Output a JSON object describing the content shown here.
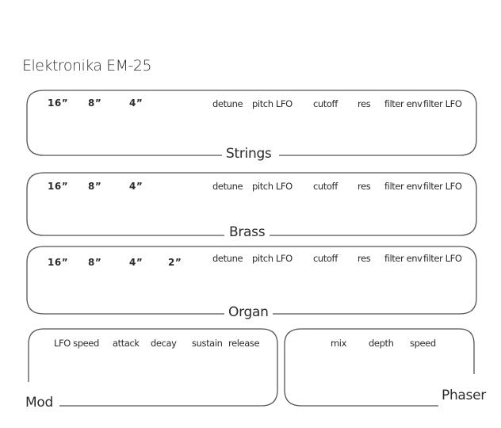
{
  "title": "Elektronika EM-25",
  "sections": {
    "strings": {
      "name": "Strings",
      "footages": [
        "16”",
        "8”",
        "4”"
      ],
      "controls": [
        "detune",
        "pitch LFO",
        "cutoff",
        "res",
        "filter env",
        "filter LFO"
      ]
    },
    "brass": {
      "name": "Brass",
      "footages": [
        "16”",
        "8”",
        "4”"
      ],
      "controls": [
        "detune",
        "pitch LFO",
        "cutoff",
        "res",
        "filter env",
        "filter LFO"
      ]
    },
    "organ": {
      "name": "Organ",
      "footages": [
        "16”",
        "8”",
        "4”",
        "2”"
      ],
      "controls": [
        "detune",
        "pitch LFO",
        "cutoff",
        "res",
        "filter env",
        "filter LFO"
      ]
    },
    "mod": {
      "name": "Mod",
      "controls": [
        "LFO speed",
        "attack",
        "decay",
        "sustain",
        "release"
      ]
    },
    "phaser": {
      "name": "Phaser",
      "controls": [
        "mix",
        "depth",
        "speed"
      ]
    }
  }
}
